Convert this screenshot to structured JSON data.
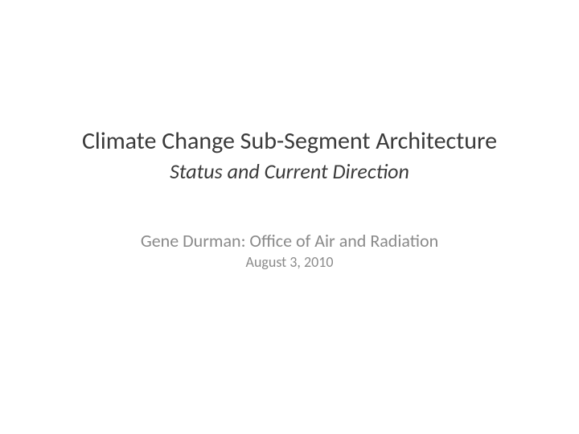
{
  "slide": {
    "title": "Climate Change Sub-Segment Architecture",
    "subtitle": "Status and Current Direction",
    "author": "Gene Durman: Office of Air and Radiation",
    "date": "August 3, 2010"
  },
  "styling": {
    "background_color": "#ffffff",
    "title_color": "#3a3a3a",
    "title_fontsize": 30,
    "subtitle_color": "#3a3a3a",
    "subtitle_fontsize": 26,
    "subtitle_fontstyle": "italic",
    "author_color": "#8a8a8a",
    "author_fontsize": 22,
    "date_color": "#8a8a8a",
    "date_fontsize": 18,
    "font_family": "Calibri"
  }
}
